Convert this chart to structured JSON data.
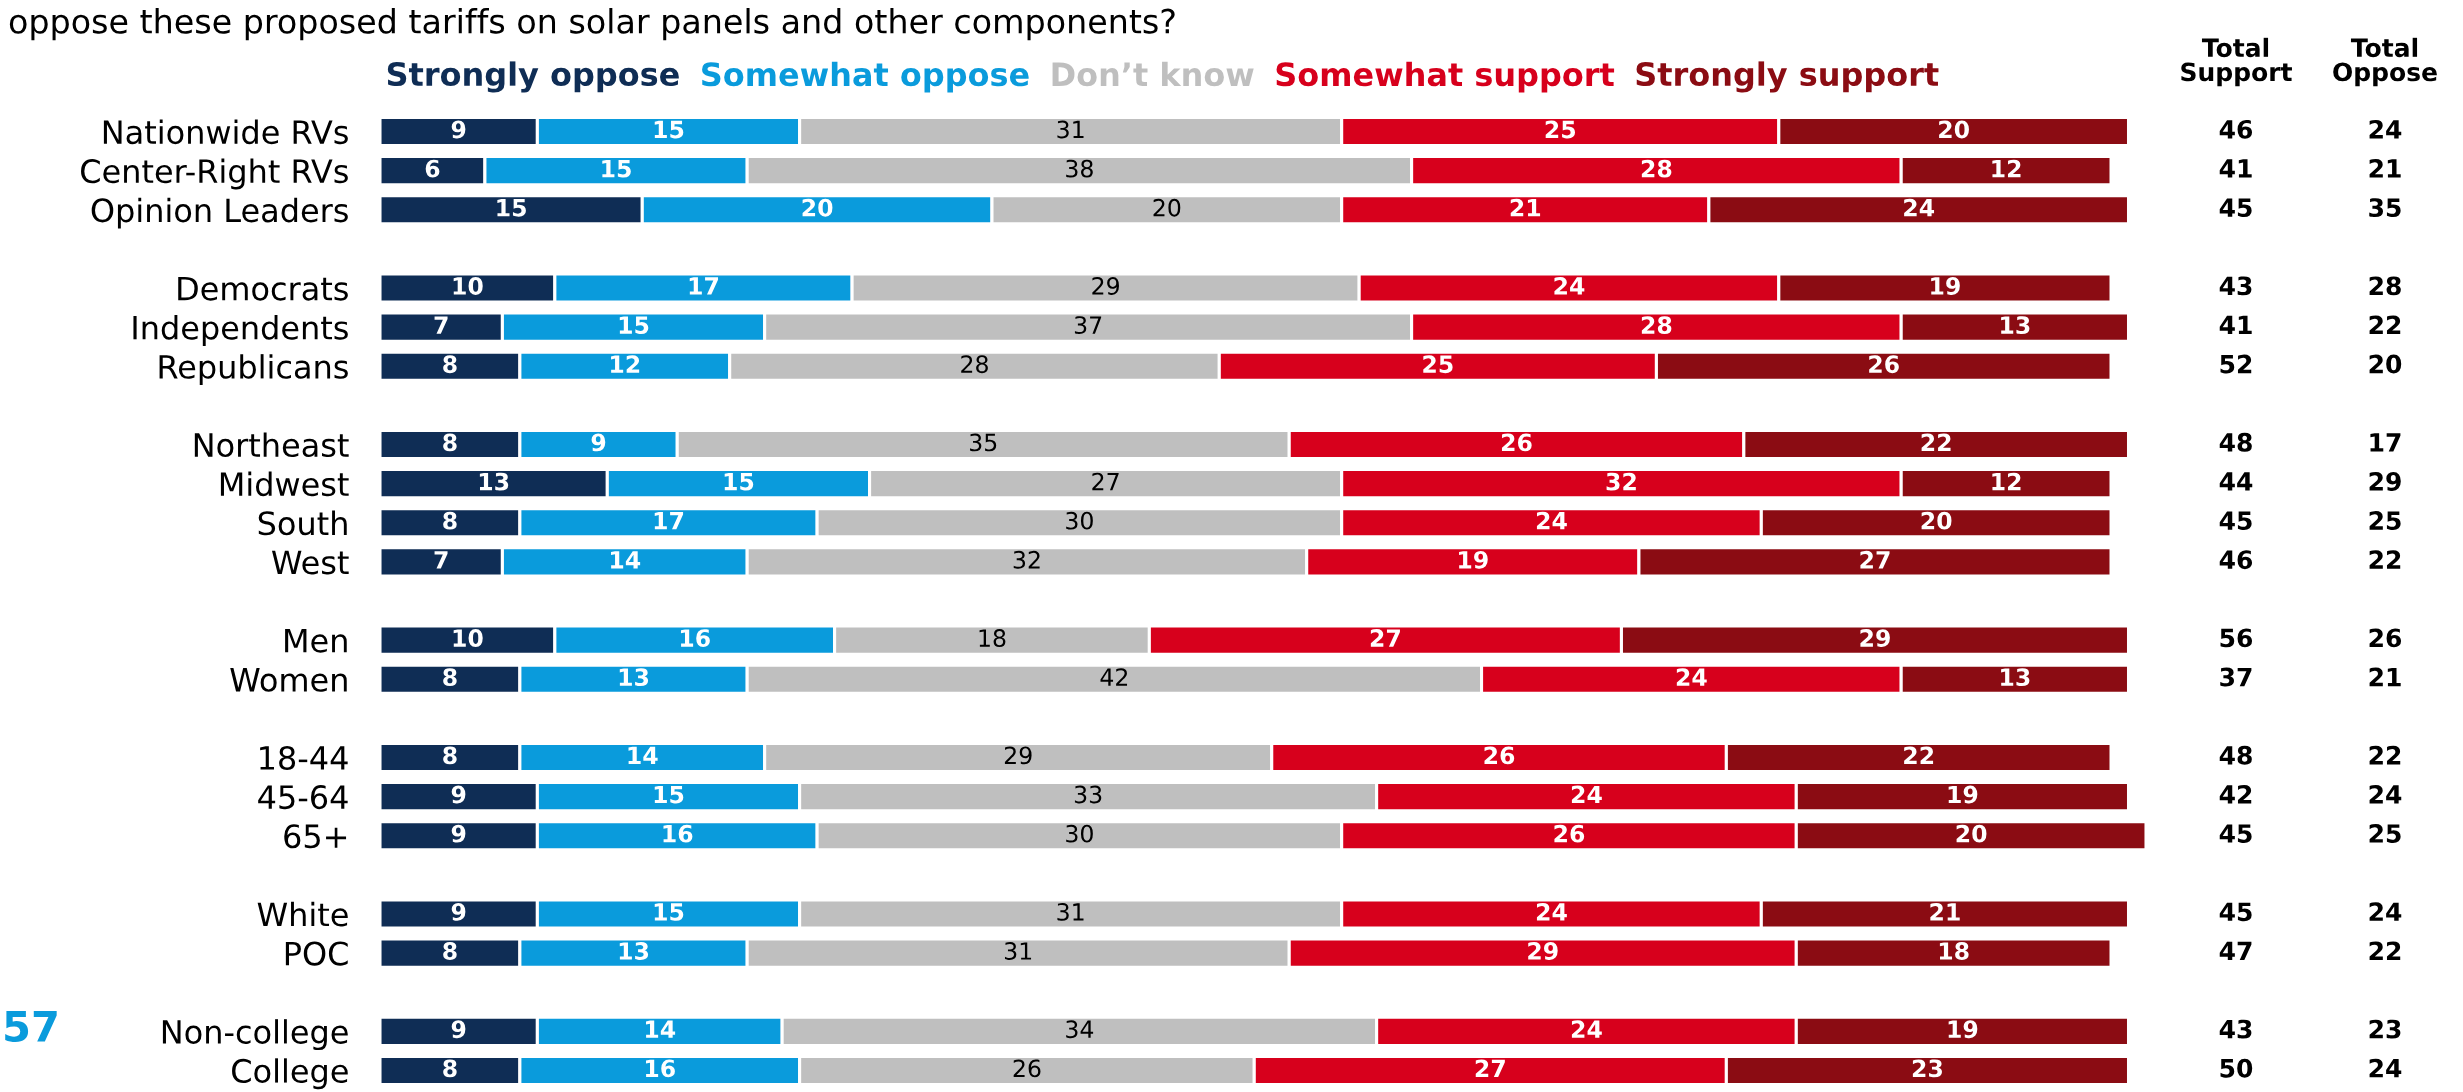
{
  "chart_data": {
    "type": "bar",
    "orientation": "horizontal",
    "stacked": true,
    "data_labels": true,
    "legend": "top",
    "grid": false,
    "title": "oppose these proposed tariffs on solar panels and other components?",
    "categories": [
      "Nationwide RVs",
      "Center-Right RVs",
      "Opinion Leaders",
      null,
      "Democrats",
      "Independents",
      "Republicans",
      null,
      "Northeast",
      "Midwest",
      "South",
      "West",
      null,
      "Men",
      "Women",
      null,
      "18-44",
      "45-64",
      "65+",
      null,
      "White",
      "POC",
      null,
      "Non-college",
      "College"
    ],
    "series": [
      {
        "name": "Strongly oppose",
        "color": "#0f2d55",
        "values": [
          9,
          6,
          15,
          null,
          10,
          7,
          8,
          null,
          8,
          13,
          8,
          7,
          null,
          10,
          8,
          null,
          8,
          9,
          9,
          null,
          9,
          8,
          null,
          9,
          8
        ]
      },
      {
        "name": "Somewhat oppose",
        "color": "#0a9bdc",
        "values": [
          15,
          15,
          20,
          null,
          17,
          15,
          12,
          null,
          9,
          15,
          17,
          14,
          null,
          16,
          13,
          null,
          14,
          15,
          16,
          null,
          15,
          13,
          null,
          14,
          16
        ]
      },
      {
        "name": "Don’t know",
        "color": "#bfbfbf",
        "values": [
          31,
          38,
          20,
          null,
          29,
          37,
          28,
          null,
          35,
          27,
          30,
          32,
          null,
          18,
          42,
          null,
          29,
          33,
          30,
          null,
          31,
          31,
          null,
          34,
          26
        ]
      },
      {
        "name": "Somewhat support",
        "color": "#d7001c",
        "values": [
          25,
          28,
          21,
          null,
          24,
          28,
          25,
          null,
          26,
          32,
          24,
          19,
          null,
          27,
          24,
          null,
          26,
          24,
          26,
          null,
          24,
          29,
          null,
          24,
          27
        ]
      },
      {
        "name": "Strongly support",
        "color": "#8b0c13",
        "values": [
          20,
          12,
          24,
          null,
          19,
          13,
          26,
          null,
          22,
          12,
          20,
          27,
          null,
          29,
          13,
          null,
          22,
          19,
          20,
          null,
          21,
          18,
          null,
          19,
          23
        ]
      }
    ],
    "totals": [
      [
        "46",
        "24"
      ],
      [
        "41",
        "21"
      ],
      [
        "45",
        "35"
      ],
      null,
      [
        "43",
        "28"
      ],
      [
        "41",
        "22"
      ],
      [
        "52",
        "20"
      ],
      null,
      [
        "48",
        "17"
      ],
      [
        "44",
        "29"
      ],
      [
        "45",
        "25"
      ],
      [
        "46",
        "22"
      ],
      null,
      [
        "56",
        "26"
      ],
      [
        "37",
        "21"
      ],
      null,
      [
        "48",
        "22"
      ],
      [
        "42",
        "24"
      ],
      [
        "45",
        "25"
      ],
      null,
      [
        "45",
        "24"
      ],
      [
        "47",
        "22"
      ],
      null,
      [
        "43",
        "23"
      ],
      [
        "50",
        "24"
      ]
    ],
    "annotations": [
      "Total\nSupport",
      "Total\nOppose",
      "57"
    ]
  }
}
